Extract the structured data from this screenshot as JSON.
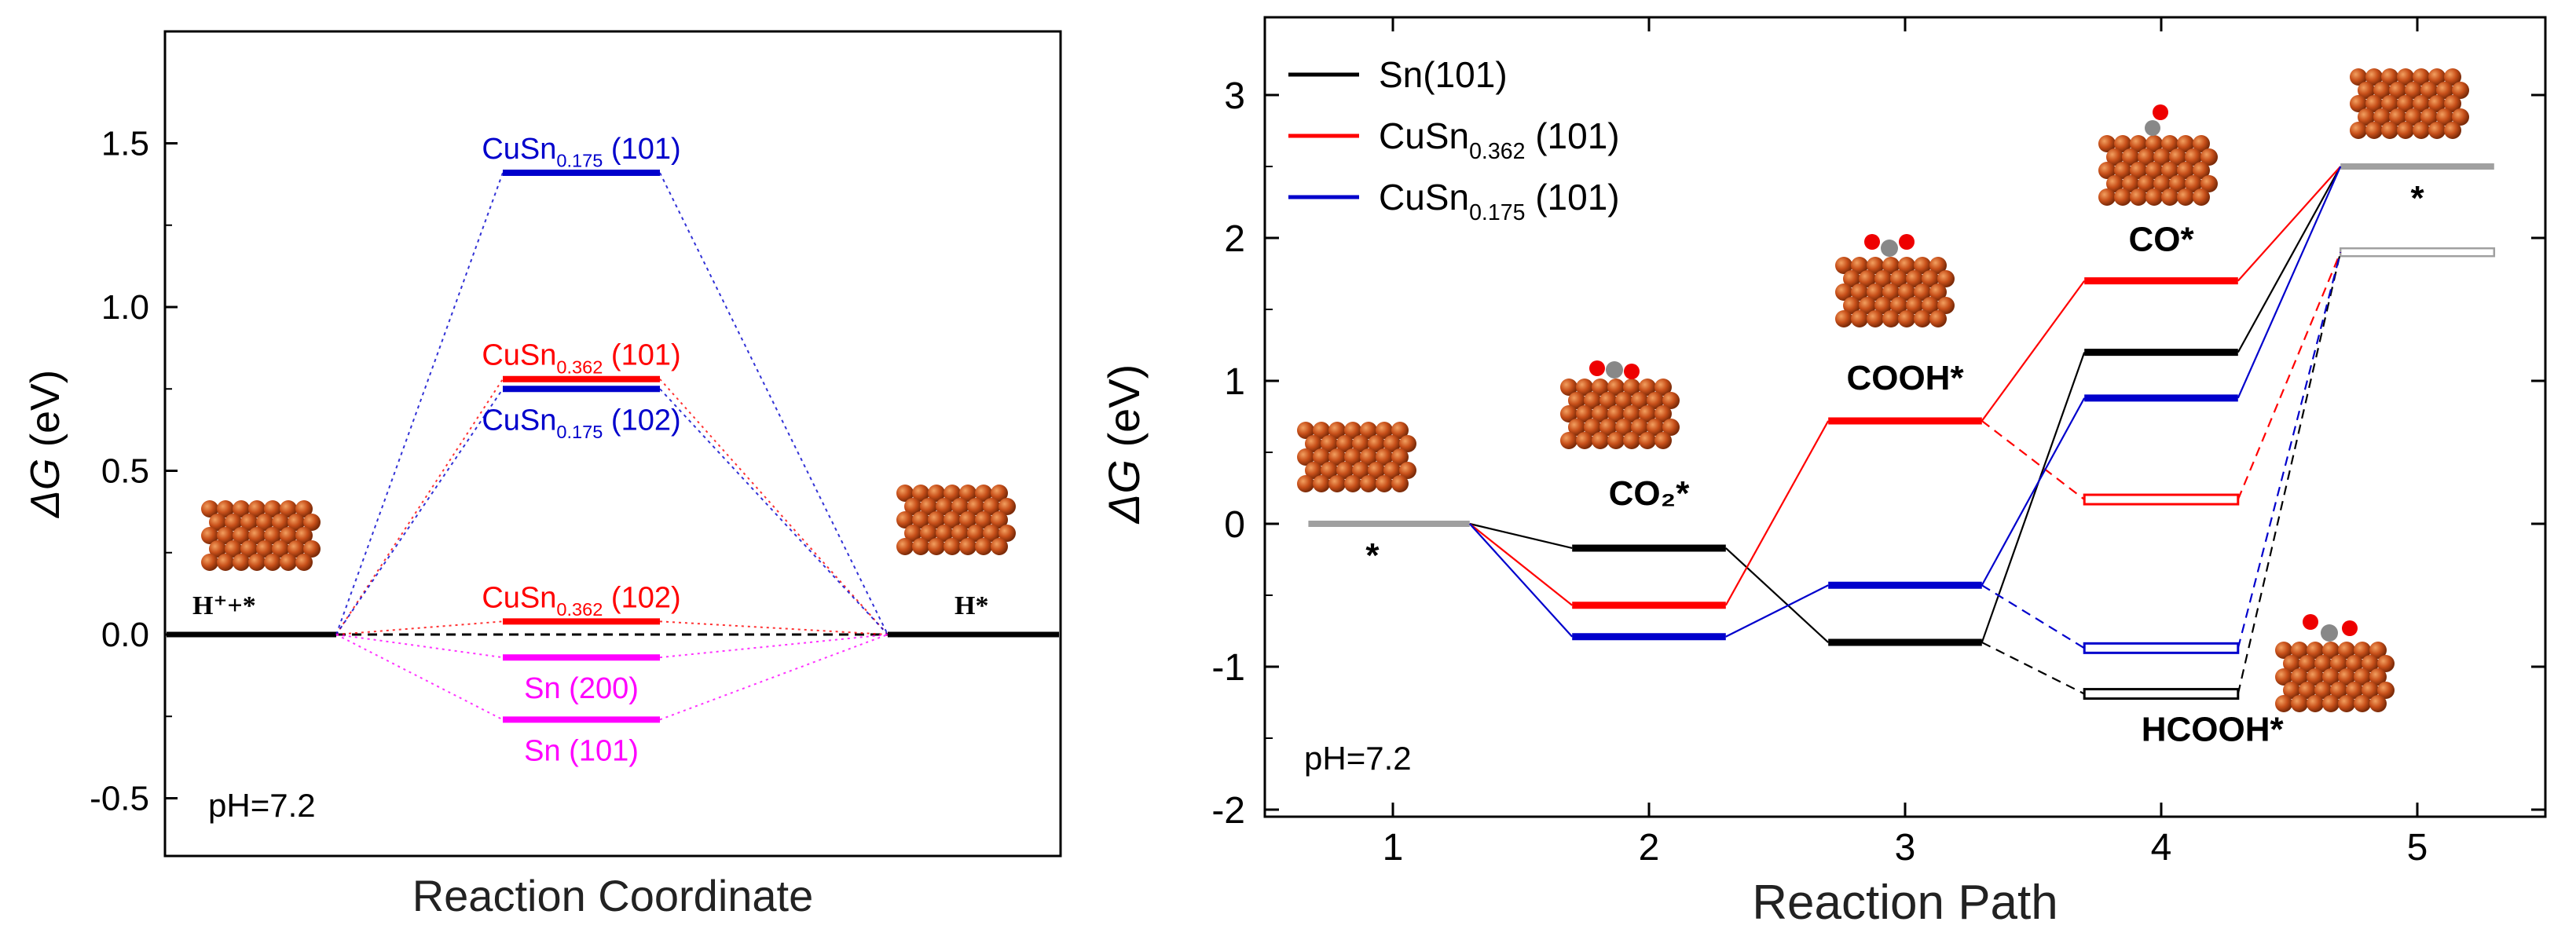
{
  "colors": {
    "black": "#000000",
    "red": "#ff0000",
    "blue": "#0000cc",
    "magenta": "#ff00ff",
    "gray": "#a0a0a0",
    "atom": "#c8501a"
  },
  "chart_data": [
    {
      "type": "line",
      "description_role": "energy-level diagram",
      "xlabel": "Reaction Coordinate",
      "ylabel": "ΔG (eV)",
      "ylim": [
        -0.6,
        1.8
      ],
      "yticks": [
        "-0.5",
        "0.0",
        "0.5",
        "1.0",
        "1.5"
      ],
      "annotation": "pH=7.2",
      "states": [
        "H⁺+*",
        "H*"
      ],
      "levels": [
        {
          "label_main": "CuSn",
          "label_sub": "0.175",
          "label_tail": " (101)",
          "value": 1.41,
          "color": "#0000cc",
          "label_pos": "above"
        },
        {
          "label_main": "CuSn",
          "label_sub": "0.362",
          "label_tail": " (101)",
          "value": 0.78,
          "color": "#ff0000",
          "label_pos": "above"
        },
        {
          "label_main": "CuSn",
          "label_sub": "0.175",
          "label_tail": " (102)",
          "value": 0.75,
          "color": "#0000cc",
          "label_pos": "below"
        },
        {
          "label_main": "CuSn",
          "label_sub": "0.362",
          "label_tail": " (102)",
          "value": 0.04,
          "color": "#ff0000",
          "label_pos": "above"
        },
        {
          "label_main": "Sn (200)",
          "label_sub": "",
          "label_tail": "",
          "value": -0.07,
          "color": "#ff00ff",
          "label_pos": "below"
        },
        {
          "label_main": "Sn (101)",
          "label_sub": "",
          "label_tail": "",
          "value": -0.26,
          "color": "#ff00ff",
          "label_pos": "below"
        }
      ]
    },
    {
      "type": "line",
      "description_role": "reaction energy profile",
      "xlabel": "Reaction Path",
      "ylabel": "ΔG (eV)",
      "xlim": [
        0.5,
        5.5
      ],
      "ylim": [
        -2,
        3.5
      ],
      "xticks": [
        "1",
        "2",
        "3",
        "4",
        "5"
      ],
      "yticks": [
        "-2",
        "-1",
        "0",
        "1",
        "2",
        "3"
      ],
      "annotation": "pH=7.2",
      "legend_position": "top-left",
      "legend": [
        {
          "main": "Sn(101)",
          "sub": "",
          "tail": "",
          "color": "#000000"
        },
        {
          "main": "CuSn",
          "sub": "0.362",
          "tail": " (101)",
          "color": "#ff0000"
        },
        {
          "main": "CuSn",
          "sub": "0.175",
          "tail": " (101)",
          "color": "#0000cc"
        }
      ],
      "state_labels": [
        {
          "text": "*",
          "x": 1
        },
        {
          "text": "CO₂*",
          "x": 2
        },
        {
          "text": "COOH*",
          "x": 3
        },
        {
          "text": "CO*",
          "x": 4
        },
        {
          "text": "HCOOH*",
          "x": 4
        },
        {
          "text": "*",
          "x": 5
        }
      ],
      "series": [
        {
          "color": "#000000",
          "values": [
            0,
            -0.17,
            -0.83,
            1.2,
            2.5
          ],
          "hcooh": -1.19
        },
        {
          "color": "#ff0000",
          "values": [
            0,
            -0.57,
            0.72,
            1.7,
            2.5
          ],
          "hcooh": 0.17
        },
        {
          "color": "#0000cc",
          "values": [
            0,
            -0.79,
            -0.43,
            0.88,
            2.5
          ],
          "hcooh": -0.87
        }
      ],
      "final_alt_level": 1.9
    }
  ]
}
